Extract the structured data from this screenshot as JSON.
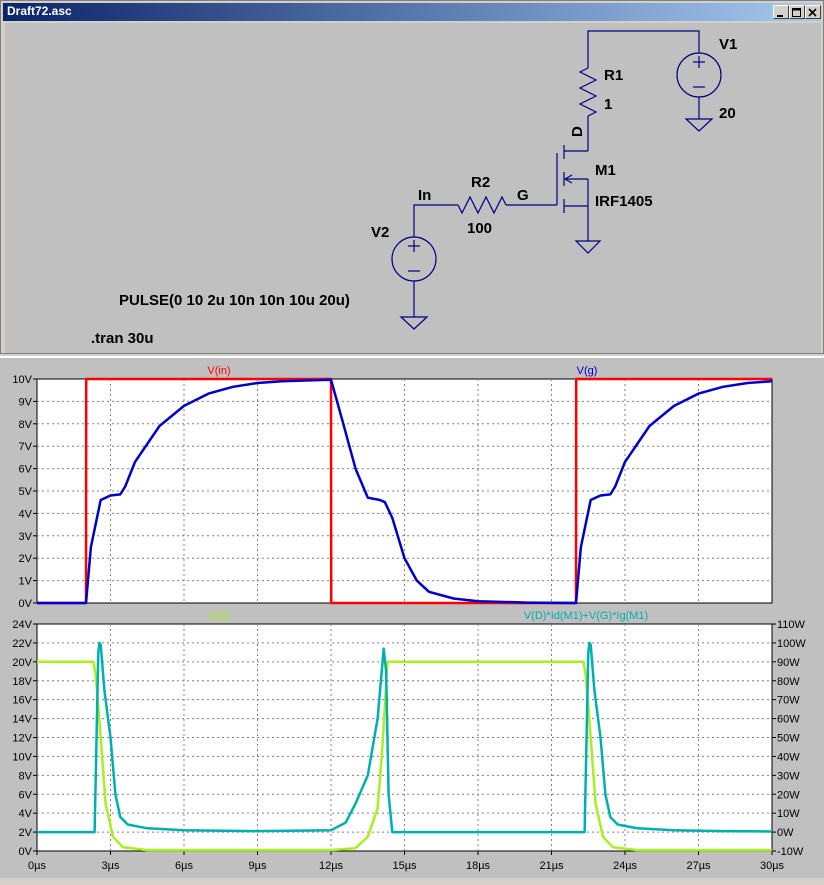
{
  "window": {
    "title": "Draft72.asc"
  },
  "schematic": {
    "labels": {
      "V1": "V1",
      "V1_value": "20",
      "R1": "R1",
      "R1_value": "1",
      "D": "D",
      "M1": "M1",
      "M1_model": "IRF1405",
      "R2": "R2",
      "R2_value": "100",
      "In": "In",
      "G": "G",
      "V2": "V2",
      "pulse": "PULSE(0 10 2u 10n 10n 10u 20u)",
      "tran": ".tran 30u"
    }
  },
  "chart_data": [
    {
      "type": "line",
      "xlim": [
        0,
        30
      ],
      "ylim": [
        0,
        10
      ],
      "yticks": [
        "0V",
        "1V",
        "2V",
        "3V",
        "4V",
        "5V",
        "6V",
        "7V",
        "8V",
        "9V",
        "10V"
      ],
      "series": [
        {
          "name": "V(in)",
          "color": "#ff0000",
          "x": [
            0,
            2,
            2.01,
            12,
            12.01,
            22,
            22.01,
            30
          ],
          "y": [
            0,
            0,
            10,
            10,
            0,
            0,
            10,
            10
          ]
        },
        {
          "name": "V(g)",
          "color": "#0000cc",
          "x": [
            0,
            2,
            2.2,
            2.6,
            3,
            3.4,
            3.6,
            4,
            5,
            6,
            7,
            8,
            9,
            10,
            12,
            12.5,
            13,
            13.5,
            14,
            14.2,
            14.5,
            15,
            15.5,
            16,
            17,
            18,
            20,
            22,
            22.2,
            22.6,
            23,
            23.4,
            23.6,
            24,
            25,
            26,
            27,
            28,
            29,
            30
          ],
          "y": [
            0,
            0,
            2.5,
            4.6,
            4.8,
            4.85,
            5.2,
            6.3,
            7.9,
            8.8,
            9.35,
            9.65,
            9.82,
            9.9,
            9.97,
            8,
            6,
            4.7,
            4.6,
            4.5,
            3.8,
            2,
            1,
            0.5,
            0.2,
            0.08,
            0.02,
            0,
            2.5,
            4.6,
            4.8,
            4.85,
            5.2,
            6.3,
            7.9,
            8.8,
            9.35,
            9.65,
            9.82,
            9.9
          ]
        }
      ]
    },
    {
      "type": "line",
      "xlim": [
        0,
        30
      ],
      "ylim_left": [
        0,
        24
      ],
      "ylim_right": [
        -10,
        110
      ],
      "xticks": [
        "0µs",
        "3µs",
        "6µs",
        "9µs",
        "12µs",
        "15µs",
        "18µs",
        "21µs",
        "24µs",
        "27µs",
        "30µs"
      ],
      "yticks_left": [
        "0V",
        "2V",
        "4V",
        "6V",
        "8V",
        "10V",
        "12V",
        "14V",
        "16V",
        "18V",
        "20V",
        "22V",
        "24V"
      ],
      "yticks_right": [
        "-10W",
        "0W",
        "10W",
        "20W",
        "30W",
        "40W",
        "50W",
        "60W",
        "70W",
        "80W",
        "90W",
        "100W",
        "110W"
      ],
      "series": [
        {
          "name": "V(d)",
          "color": "#a8f020",
          "axis": "left",
          "x": [
            0,
            2.3,
            2.4,
            2.6,
            2.8,
            3.1,
            3.5,
            4.5,
            12,
            13,
            13.5,
            13.9,
            14.1,
            14.3,
            14.4,
            22,
            22.3,
            22.4,
            22.6,
            22.8,
            23.1,
            23.5,
            24.5,
            30
          ],
          "y": [
            20,
            20,
            18.6,
            12,
            5,
            1.5,
            0.4,
            0.1,
            0.1,
            0.3,
            1.5,
            4.5,
            11,
            20,
            20,
            20,
            20,
            18.6,
            12,
            5,
            1.5,
            0.4,
            0.1,
            0.1
          ]
        },
        {
          "name": "V(D)*Id(M1)+V(G)*Ig(M1)",
          "color": "#00b0b0",
          "axis": "right",
          "x": [
            0,
            2.35,
            2.5,
            2.55,
            2.6,
            2.75,
            3,
            3.2,
            3.4,
            3.7,
            4.5,
            6,
            9,
            12,
            12.6,
            13,
            13.5,
            13.9,
            14.15,
            14.25,
            14.35,
            14.5,
            22,
            22.35,
            22.5,
            22.55,
            22.6,
            22.75,
            23,
            23.2,
            23.4,
            23.7,
            24.5,
            26,
            28,
            30
          ],
          "y": [
            0,
            0,
            95,
            100,
            99,
            75,
            50,
            20,
            8,
            4,
            2,
            1,
            0.5,
            1,
            5,
            15,
            30,
            60,
            97,
            85,
            20,
            0,
            0,
            0,
            95,
            100,
            99,
            75,
            50,
            20,
            8,
            4,
            2,
            1,
            0.5,
            0.3
          ]
        }
      ]
    }
  ]
}
